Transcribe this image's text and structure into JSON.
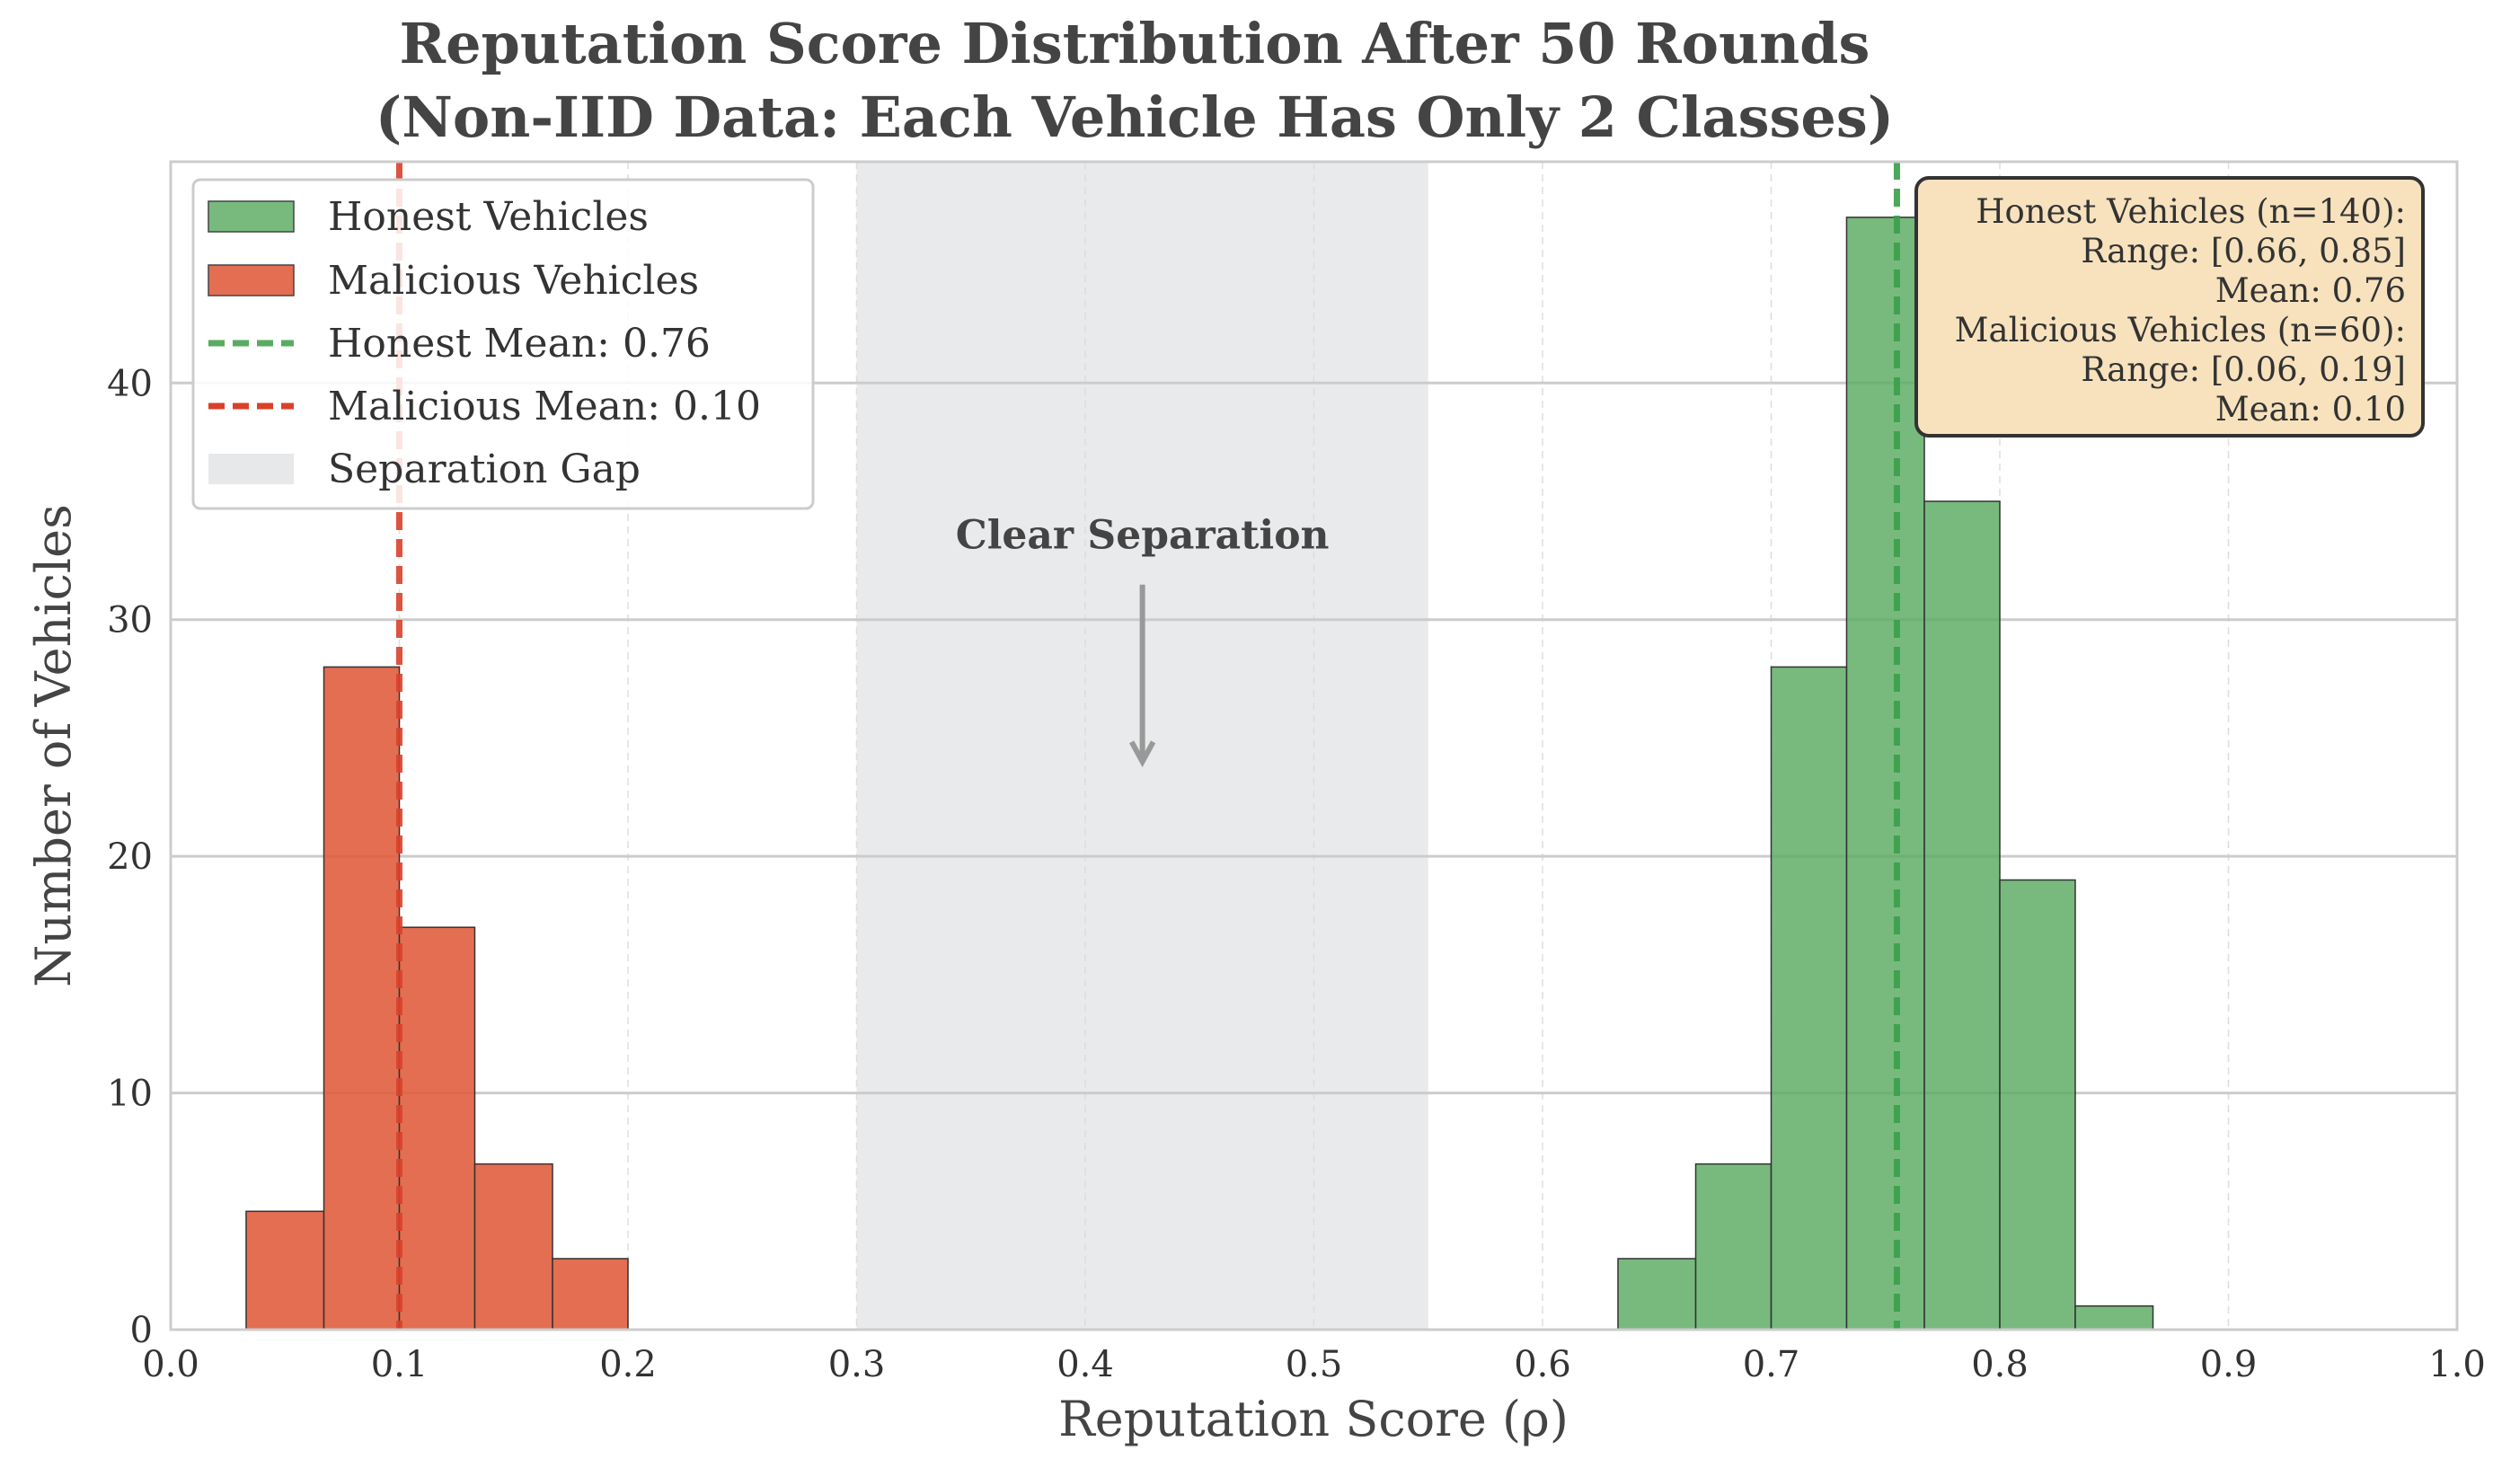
{
  "chart_data": {
    "type": "bar",
    "title_lines": [
      "Reputation Score Distribution After 50 Rounds",
      "(Non-IID Data: Each Vehicle Has Only 2 Classes)"
    ],
    "xlabel": "Reputation Score (ρ)",
    "ylabel": "Number of Vehicles",
    "xlim": [
      0.0,
      1.0
    ],
    "ylim": [
      0,
      49.35
    ],
    "xticks": [
      "0.0",
      "0.1",
      "0.2",
      "0.3",
      "0.4",
      "0.5",
      "0.6",
      "0.7",
      "0.8",
      "0.9",
      "1.0"
    ],
    "yticks": [
      0,
      10,
      20,
      30,
      40
    ],
    "grid": true,
    "series": [
      {
        "name": "Honest Vehicles",
        "color": "#5aab61",
        "bins": [
          {
            "x0": 0.633,
            "x1": 0.667,
            "count": 3
          },
          {
            "x0": 0.667,
            "x1": 0.7,
            "count": 7
          },
          {
            "x0": 0.7,
            "x1": 0.733,
            "count": 28
          },
          {
            "x0": 0.733,
            "x1": 0.767,
            "count": 47
          },
          {
            "x0": 0.767,
            "x1": 0.8,
            "count": 35
          },
          {
            "x0": 0.8,
            "x1": 0.833,
            "count": 19
          },
          {
            "x0": 0.833,
            "x1": 0.867,
            "count": 1
          }
        ]
      },
      {
        "name": "Malicious Vehicles",
        "color": "#e05a3a",
        "bins": [
          {
            "x0": 0.033,
            "x1": 0.067,
            "count": 5
          },
          {
            "x0": 0.067,
            "x1": 0.1,
            "count": 28
          },
          {
            "x0": 0.1,
            "x1": 0.133,
            "count": 17
          },
          {
            "x0": 0.133,
            "x1": 0.167,
            "count": 7
          },
          {
            "x0": 0.167,
            "x1": 0.2,
            "count": 3
          }
        ]
      }
    ],
    "mean_lines": [
      {
        "name": "Honest Mean: 0.76",
        "x": 0.755,
        "color": "#3a9e4a"
      },
      {
        "name": "Malicious Mean: 0.10",
        "x": 0.1,
        "color": "#d9412b"
      }
    ],
    "shaded_region": {
      "name": "Separation Gap",
      "x0": 0.3,
      "x1": 0.55,
      "color": "#d5d8dc"
    },
    "annotation": {
      "text": "Clear Separation",
      "x": 0.425,
      "y_text": 33,
      "y_arrow": 24
    },
    "legend_position": "top-left",
    "stats_box": {
      "position": "top-right",
      "lines": [
        "Honest Vehicles (n=140):",
        "Range: [0.66, 0.85]",
        "Mean: 0.76",
        "Malicious Vehicles (n=60):",
        "Range: [0.06, 0.19]",
        "Mean: 0.10"
      ]
    }
  }
}
